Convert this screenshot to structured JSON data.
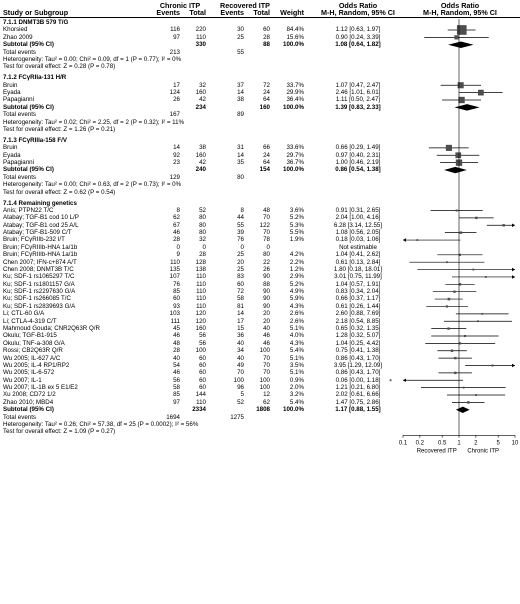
{
  "header": {
    "col_study": "Study or Subgroup",
    "group1": "Chronic ITP",
    "group2": "Recovered ITP",
    "events": "Events",
    "total": "Total",
    "weight": "Weight",
    "or_col": "Odds Ratio",
    "or_method": "M-H, Random, 95% CI",
    "or_plot_title": "Odds Ratio",
    "or_plot_method": "M-H, Random, 95% CI"
  },
  "chart_data": {
    "type": "forest",
    "x_scale": "log",
    "xlim": [
      0.1,
      10
    ],
    "xticks": [
      "0.1",
      "0.2",
      "0.5",
      "1",
      "2",
      "5",
      "10"
    ],
    "xlabel_left": "Recovered ITP",
    "xlabel_right": "Chronic ITP",
    "subgroups": [
      {
        "title": "7.1.1 DNMT3B 579 T/G",
        "studies": [
          {
            "name": "Khorsied",
            "e1": "116",
            "t1": "220",
            "e2": "30",
            "t2": "60",
            "w": "84.4%",
            "ci": "1.12 [0.63, 1.97]",
            "or": 1.12,
            "lo": 0.63,
            "hi": 1.97,
            "wt": 84.4
          },
          {
            "name": "Zhao 2009",
            "e1": "97",
            "t1": "110",
            "e2": "25",
            "t2": "28",
            "w": "15.6%",
            "ci": "0.90 [0.24, 3.39]",
            "or": 0.9,
            "lo": 0.24,
            "hi": 3.39,
            "wt": 15.6
          }
        ],
        "subtotal": {
          "label": "Subtotal (95% CI)",
          "t1": "330",
          "t2": "88",
          "w": "100.0%",
          "ci": "1.08 [0.64, 1.82]",
          "or": 1.08,
          "lo": 0.64,
          "hi": 1.82
        },
        "total_events": {
          "label": "Total events",
          "e1": "213",
          "e2": "55"
        },
        "heterogeneity": "Heterogeneity: Tau² = 0.00; Chi² = 0.09, df = 1 (P = 0.77); I² = 0%",
        "overall": "Test for overall effect: Z = 0.28 (P = 0.78)"
      },
      {
        "title": "7.1.2 FCγRIIa-131 H/R",
        "studies": [
          {
            "name": "Bruin",
            "e1": "17",
            "t1": "32",
            "e2": "37",
            "t2": "72",
            "w": "33.7%",
            "ci": "1.07 [0.47, 2.47]",
            "or": 1.07,
            "lo": 0.47,
            "hi": 2.47,
            "wt": 33.7
          },
          {
            "name": "Eyada",
            "e1": "124",
            "t1": "160",
            "e2": "14",
            "t2": "24",
            "w": "29.9%",
            "ci": "2.46 [1.01, 6.01]",
            "or": 2.46,
            "lo": 1.01,
            "hi": 6.01,
            "wt": 29.9
          },
          {
            "name": "Papagianni",
            "e1": "26",
            "t1": "42",
            "e2": "38",
            "t2": "64",
            "w": "36.4%",
            "ci": "1.11 [0.50, 2.47]",
            "or": 1.11,
            "lo": 0.5,
            "hi": 2.47,
            "wt": 36.4
          }
        ],
        "subtotal": {
          "label": "Subtotal (95% CI)",
          "t1": "234",
          "t2": "160",
          "w": "100.0%",
          "ci": "1.39 [0.83, 2.33]",
          "or": 1.39,
          "lo": 0.83,
          "hi": 2.33
        },
        "total_events": {
          "label": "Total events",
          "e1": "167",
          "e2": "89"
        },
        "heterogeneity": "Heterogeneity: Tau² = 0.02; Chi² = 2.25, df = 2 (P = 0.32); I² = 11%",
        "overall": "Test for overall effect: Z = 1.26 (P = 0.21)"
      },
      {
        "title": "7.1.3 FCγRIIIa-158 F/V",
        "studies": [
          {
            "name": "Bruin",
            "e1": "14",
            "t1": "38",
            "e2": "31",
            "t2": "66",
            "w": "33.6%",
            "ci": "0.66 [0.29, 1.49]",
            "or": 0.66,
            "lo": 0.29,
            "hi": 1.49,
            "wt": 33.6
          },
          {
            "name": "Eyada",
            "e1": "92",
            "t1": "160",
            "e2": "14",
            "t2": "24",
            "w": "29.7%",
            "ci": "0.97 [0.40, 2.31]",
            "or": 0.97,
            "lo": 0.4,
            "hi": 2.31,
            "wt": 29.7
          },
          {
            "name": "Papagianni",
            "e1": "23",
            "t1": "42",
            "e2": "35",
            "t2": "64",
            "w": "36.7%",
            "ci": "1.00 [0.46, 2.19]",
            "or": 1.0,
            "lo": 0.46,
            "hi": 2.19,
            "wt": 36.7
          }
        ],
        "subtotal": {
          "label": "Subtotal (95% CI)",
          "t1": "240",
          "t2": "154",
          "w": "100.0%",
          "ci": "0.86 [0.54, 1.38]",
          "or": 0.86,
          "lo": 0.54,
          "hi": 1.38
        },
        "total_events": {
          "label": "Total events",
          "e1": "129",
          "e2": "80"
        },
        "heterogeneity": "Heterogeneity: Tau² = 0.00; Chi² = 0.63, df = 2 (P = 0.73); I² = 0%",
        "overall": "Test for overall effect: Z = 0.62 (P = 0.54)"
      },
      {
        "title": "7.1.4 Remaining genetics",
        "studies": [
          {
            "name": "Anis; PTPN22 T/C",
            "e1": "8",
            "t1": "52",
            "e2": "8",
            "t2": "48",
            "w": "3.6%",
            "ci": "0.91 [0.31, 2.65]",
            "or": 0.91,
            "lo": 0.31,
            "hi": 2.65,
            "wt": 3.6
          },
          {
            "name": "Atabay; TGF-B1 cod 10 L/P",
            "e1": "62",
            "t1": "80",
            "e2": "44",
            "t2": "70",
            "w": "5.2%",
            "ci": "2.04 [1.00, 4.16]",
            "or": 2.04,
            "lo": 1.0,
            "hi": 4.16,
            "wt": 5.2
          },
          {
            "name": "Atabay; TGF-B1 cod 25 A/L",
            "e1": "67",
            "t1": "80",
            "e2": "55",
            "t2": "122",
            "w": "5.3%",
            "ci": "6.28 [3.14, 12.55]",
            "or": 6.28,
            "lo": 3.14,
            "hi": 12.55,
            "wt": 5.3
          },
          {
            "name": "Atabay; TGF-B1-509 C/T",
            "e1": "46",
            "t1": "80",
            "e2": "39",
            "t2": "70",
            "w": "5.5%",
            "ci": "1.08 [0.56, 2.05]",
            "or": 1.08,
            "lo": 0.56,
            "hi": 2.05,
            "wt": 5.5
          },
          {
            "name": "Bruin; FCγRIIb-232 I/T",
            "e1": "28",
            "t1": "32",
            "e2": "76",
            "t2": "78",
            "w": "1.9%",
            "ci": "0.18 [0.03, 1.06]",
            "or": 0.18,
            "lo": 0.03,
            "hi": 1.06,
            "wt": 1.9
          },
          {
            "name": "Bruin; FCγRIIIb-HNA 1a/1b",
            "e1": "0",
            "t1": "0",
            "e2": "0",
            "t2": "0",
            "w": "",
            "ci": "Not estimable",
            "or": null,
            "lo": null,
            "hi": null,
            "wt": 0
          },
          {
            "name": "Bruin; FCγRIIIb-HNA 1a/1b",
            "e1": "9",
            "t1": "28",
            "e2": "25",
            "t2": "80",
            "w": "4.2%",
            "ci": "1.04 [0.41, 2.62]",
            "or": 1.04,
            "lo": 0.41,
            "hi": 2.62,
            "wt": 4.2
          },
          {
            "name": "Chen 2007; IFN-c+874 A/T",
            "e1": "110",
            "t1": "128",
            "e2": "20",
            "t2": "22",
            "w": "2.2%",
            "ci": "0.61 [0.13, 2.84]",
            "or": 0.61,
            "lo": 0.13,
            "hi": 2.84,
            "wt": 2.2
          },
          {
            "name": "Chen 2008; DNMT3B T/C",
            "e1": "135",
            "t1": "138",
            "e2": "25",
            "t2": "26",
            "w": "1.2%",
            "ci": "1.80 [0.18, 18.01]",
            "or": 1.8,
            "lo": 0.18,
            "hi": 18.01,
            "wt": 1.2
          },
          {
            "name": "Ku; SDF-1 rs1065297 T/C",
            "e1": "107",
            "t1": "110",
            "e2": "83",
            "t2": "90",
            "w": "2.9%",
            "ci": "3.01 [0.75, 11.99]",
            "or": 3.01,
            "lo": 0.75,
            "hi": 11.99,
            "wt": 2.9
          },
          {
            "name": "Ku; SDF-1 rs1801157 G/A",
            "e1": "76",
            "t1": "110",
            "e2": "60",
            "t2": "88",
            "w": "5.2%",
            "ci": "1.04 [0.57, 1.91]",
            "or": 1.04,
            "lo": 0.57,
            "hi": 1.91,
            "wt": 5.2
          },
          {
            "name": "Ku; SDF-1 rs2297630 G/A",
            "e1": "85",
            "t1": "110",
            "e2": "72",
            "t2": "90",
            "w": "4.9%",
            "ci": "0.83 [0.34, 2.04]",
            "or": 0.83,
            "lo": 0.34,
            "hi": 2.04,
            "wt": 4.9
          },
          {
            "name": "Ku; SDF-1 rs266085 T/C",
            "e1": "60",
            "t1": "110",
            "e2": "58",
            "t2": "90",
            "w": "5.9%",
            "ci": "0.66 [0.37, 1.17]",
            "or": 0.66,
            "lo": 0.37,
            "hi": 1.17,
            "wt": 5.9
          },
          {
            "name": "Ku; SDF-1 rs2839693 G/A",
            "e1": "93",
            "t1": "110",
            "e2": "81",
            "t2": "90",
            "w": "4.3%",
            "ci": "0.61 [0.26, 1.44]",
            "or": 0.61,
            "lo": 0.26,
            "hi": 1.44,
            "wt": 4.3
          },
          {
            "name": "Li; CTL-60 G/A",
            "e1": "103",
            "t1": "120",
            "e2": "14",
            "t2": "20",
            "w": "2.6%",
            "ci": "2.60 [0.88, 7.69]",
            "or": 2.6,
            "lo": 0.88,
            "hi": 7.69,
            "wt": 2.6
          },
          {
            "name": "Li; CTLA-4-319 C/T",
            "e1": "111",
            "t1": "120",
            "e2": "17",
            "t2": "20",
            "w": "2.6%",
            "ci": "2.18 [0.54, 8.85]",
            "or": 2.18,
            "lo": 0.54,
            "hi": 8.85,
            "wt": 2.6
          },
          {
            "name": "Mahmoud Gouda; CNR2Q63R Q/R",
            "e1": "45",
            "t1": "160",
            "e2": "15",
            "t2": "40",
            "w": "5.1%",
            "ci": "0.65 [0.32, 1.35]",
            "or": 0.65,
            "lo": 0.32,
            "hi": 1.35,
            "wt": 5.1
          },
          {
            "name": "Okulu; TGF-B1-915",
            "e1": "46",
            "t1": "56",
            "e2": "36",
            "t2": "46",
            "w": "4.0%",
            "ci": "1.28 [0.32, 5.07]",
            "or": 1.28,
            "lo": 0.32,
            "hi": 5.07,
            "wt": 4.0
          },
          {
            "name": "Okulu; TNF-a-308 G/A",
            "e1": "48",
            "t1": "56",
            "e2": "40",
            "t2": "46",
            "w": "4.3%",
            "ci": "1.04 [0.25, 4.42]",
            "or": 1.04,
            "lo": 0.25,
            "hi": 4.42,
            "wt": 4.3
          },
          {
            "name": "Rossi; CB2Q63R Q/R",
            "e1": "28",
            "t1": "100",
            "e2": "34",
            "t2": "100",
            "w": "5.4%",
            "ci": "0.75 [0.41, 1.38]",
            "or": 0.75,
            "lo": 0.41,
            "hi": 1.38,
            "wt": 5.4
          },
          {
            "name": "Wu 2005; IL-627 A/C",
            "e1": "40",
            "t1": "60",
            "e2": "40",
            "t2": "70",
            "w": "5.1%",
            "ci": "0.86 [0.43, 1.70]",
            "or": 0.86,
            "lo": 0.43,
            "hi": 1.7,
            "wt": 5.1
          },
          {
            "name": "Wu 2005; IL-4 RP1/RP2",
            "e1": "54",
            "t1": "60",
            "e2": "49",
            "t2": "70",
            "w": "3.5%",
            "ci": "3.95 [1.29, 12.09]",
            "or": 3.95,
            "lo": 1.29,
            "hi": 12.09,
            "wt": 3.5
          },
          {
            "name": "Wu 2005; IL-6-572",
            "e1": "46",
            "t1": "60",
            "e2": "70",
            "t2": "70",
            "w": "5.1%",
            "ci": "0.86 [0.43, 1.70]",
            "or": 0.86,
            "lo": 0.43,
            "hi": 1.7,
            "wt": 5.1
          },
          {
            "name": "Wu 2007; IL-1",
            "e1": "56",
            "t1": "60",
            "e2": "100",
            "t2": "100",
            "w": "0.9%",
            "ci": "0.06 [0.00, 1.18]",
            "or": 0.06,
            "lo": 0.004,
            "hi": 1.18,
            "wt": 0.9
          },
          {
            "name": "Wu 2007; IL-1B ex 5 E1/E2",
            "e1": "58",
            "t1": "60",
            "e2": "96",
            "t2": "100",
            "w": "2.0%",
            "ci": "1.21 [0.21, 6.80]",
            "or": 1.21,
            "lo": 0.21,
            "hi": 6.8,
            "wt": 2.0
          },
          {
            "name": "Xu 2008; CD72 1/2",
            "e1": "85",
            "t1": "144",
            "e2": "5",
            "t2": "12",
            "w": "3.2%",
            "ci": "2.02 [0.61, 6.66]",
            "or": 2.02,
            "lo": 0.61,
            "hi": 6.66,
            "wt": 3.2
          },
          {
            "name": "Zhao 2010; MBD4",
            "e1": "97",
            "t1": "110",
            "e2": "52",
            "t2": "62",
            "w": "5.4%",
            "ci": "1.47 [0.75, 2.86]",
            "or": 1.47,
            "lo": 0.75,
            "hi": 2.86,
            "wt": 5.4
          }
        ],
        "subtotal": {
          "label": "Subtotal (95% CI)",
          "t1": "2334",
          "t2": "1808",
          "w": "100.0%",
          "ci": "1.17 [0.88, 1.55]",
          "or": 1.17,
          "lo": 0.88,
          "hi": 1.55
        },
        "total_events": {
          "label": "Total events",
          "e1": "1694",
          "e2": "1275"
        },
        "heterogeneity": "Heterogeneity: Tau² = 0.26; Chi² = 57.38, df = 25 (P = 0.0002); I² = 56%",
        "overall": "Test for overall effect: Z = 1.09 (P = 0.27)"
      }
    ]
  }
}
